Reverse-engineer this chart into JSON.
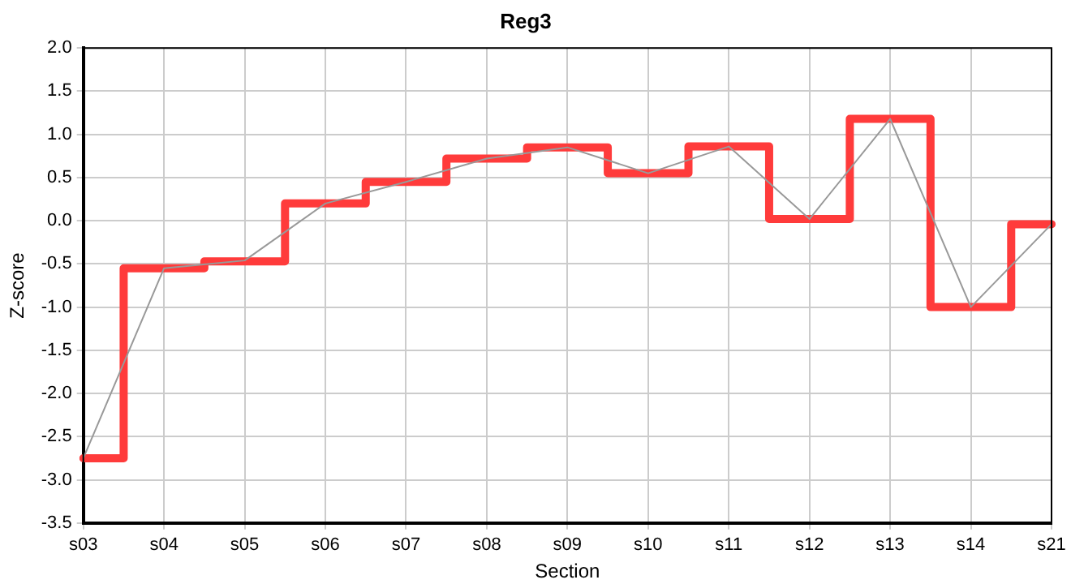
{
  "chart_data": {
    "type": "line",
    "title": "Reg3",
    "xlabel": "Section",
    "ylabel": "Z-score",
    "categories": [
      "s03",
      "s04",
      "s05",
      "s06",
      "s07",
      "s08",
      "s09",
      "s10",
      "s11",
      "s12",
      "s13",
      "s14",
      "s21"
    ],
    "series": [
      {
        "color": "#999999",
        "values": [
          -2.75,
          -0.55,
          -0.46,
          0.2,
          0.45,
          0.72,
          0.85,
          0.55,
          0.86,
          0.02,
          1.18,
          -1.0,
          -0.04
        ]
      },
      {
        "type": "step",
        "color": "#ff3b3b",
        "values": [
          -2.75,
          -0.55,
          -0.47,
          0.2,
          0.45,
          0.72,
          0.85,
          0.55,
          0.86,
          0.02,
          1.18,
          -1.0,
          -0.04
        ]
      }
    ],
    "ylim": [
      -3.5,
      2.0
    ],
    "yticks": [
      {
        "value": -3.5,
        "label": "-3.5"
      },
      {
        "value": -3,
        "label": "-3.0"
      },
      {
        "value": -2.5,
        "label": "-2.5"
      },
      {
        "value": -2,
        "label": "-2.0"
      },
      {
        "value": -1.5,
        "label": "-1.5"
      },
      {
        "value": -1,
        "label": "-1.0"
      },
      {
        "value": -0.5,
        "label": "-0.5"
      },
      {
        "value": 0,
        "label": "0.0"
      },
      {
        "value": 0.5,
        "label": "0.5"
      },
      {
        "value": 1,
        "label": "1.0"
      },
      {
        "value": 1.5,
        "label": "1.5"
      },
      {
        "value": 2,
        "label": "2.0"
      }
    ],
    "grid": true,
    "legend": false,
    "marker": "none"
  }
}
